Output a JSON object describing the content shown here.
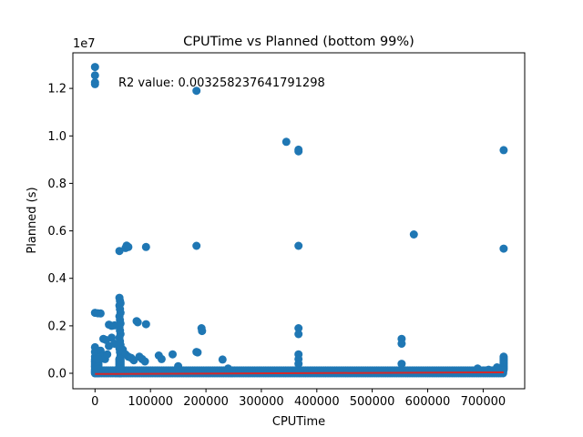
{
  "chart_data": {
    "type": "scatter",
    "title": "CPUTime vs Planned (bottom 99%)",
    "xlabel": "CPUTime",
    "ylabel": "Planned (s)",
    "y_offset_label": "1e7",
    "annotation": "R2 value: 0.003258237641791298",
    "xlim": [
      -40000,
      775000
    ],
    "ylim": [
      -650000,
      13500000
    ],
    "x_ticks": [
      0,
      100000,
      200000,
      300000,
      400000,
      500000,
      600000,
      700000
    ],
    "x_tick_labels": [
      "0",
      "100000",
      "200000",
      "300000",
      "400000",
      "500000",
      "600000",
      "700000"
    ],
    "y_ticks": [
      0,
      2000000,
      4000000,
      6000000,
      8000000,
      10000000,
      12000000
    ],
    "y_tick_labels": [
      "0.0",
      "0.2",
      "0.4",
      "0.6",
      "0.8",
      "1.0",
      "1.2"
    ],
    "grid": false,
    "point_color": "#1f77b4",
    "line_color": "#d62728",
    "regression_line": {
      "x": [
        0,
        737000
      ],
      "y": [
        -30000,
        40000
      ]
    },
    "points": [
      [
        0,
        12900000
      ],
      [
        0,
        12550000
      ],
      [
        0,
        12250000
      ],
      [
        0,
        12180000
      ],
      [
        183000,
        11900000
      ],
      [
        345000,
        9750000
      ],
      [
        367000,
        9420000
      ],
      [
        367000,
        9350000
      ],
      [
        737000,
        9400000
      ],
      [
        44000,
        5150000
      ],
      [
        55000,
        5280000
      ],
      [
        57000,
        5380000
      ],
      [
        60000,
        5320000
      ],
      [
        92000,
        5320000
      ],
      [
        183000,
        5370000
      ],
      [
        367000,
        5370000
      ],
      [
        575000,
        5850000
      ],
      [
        737000,
        5250000
      ],
      [
        0,
        2550000
      ],
      [
        5000,
        2530000
      ],
      [
        10000,
        2520000
      ],
      [
        44000,
        3180000
      ],
      [
        45000,
        3050000
      ],
      [
        46000,
        2950000
      ],
      [
        44000,
        2850000
      ],
      [
        45000,
        2700000
      ],
      [
        46000,
        2550000
      ],
      [
        44000,
        2400000
      ],
      [
        45000,
        2250000
      ],
      [
        46000,
        2100000
      ],
      [
        44000,
        1950000
      ],
      [
        45000,
        1800000
      ],
      [
        46000,
        1650000
      ],
      [
        44000,
        1500000
      ],
      [
        45000,
        1350000
      ],
      [
        46000,
        1200000
      ],
      [
        44000,
        1050000
      ],
      [
        45000,
        900000
      ],
      [
        46000,
        750000
      ],
      [
        44000,
        600000
      ],
      [
        45000,
        450000
      ],
      [
        25000,
        2050000
      ],
      [
        30000,
        2000000
      ],
      [
        35000,
        2020000
      ],
      [
        15000,
        1450000
      ],
      [
        30000,
        1500000
      ],
      [
        20000,
        1400000
      ],
      [
        35000,
        1250000
      ],
      [
        25000,
        1150000
      ],
      [
        75000,
        2200000
      ],
      [
        77000,
        2150000
      ],
      [
        92000,
        2070000
      ],
      [
        0,
        1100000
      ],
      [
        0,
        900000
      ],
      [
        0,
        700000
      ],
      [
        0,
        500000
      ],
      [
        0,
        300000
      ],
      [
        10000,
        950000
      ],
      [
        12000,
        700000
      ],
      [
        18000,
        600000
      ],
      [
        22000,
        800000
      ],
      [
        50000,
        1000000
      ],
      [
        55000,
        800000
      ],
      [
        60000,
        700000
      ],
      [
        65000,
        650000
      ],
      [
        70000,
        550000
      ],
      [
        80000,
        700000
      ],
      [
        85000,
        600000
      ],
      [
        90000,
        500000
      ],
      [
        115000,
        750000
      ],
      [
        120000,
        600000
      ],
      [
        140000,
        800000
      ],
      [
        150000,
        300000
      ],
      [
        183000,
        900000
      ],
      [
        185000,
        880000
      ],
      [
        192000,
        1900000
      ],
      [
        193000,
        1780000
      ],
      [
        230000,
        580000
      ],
      [
        240000,
        200000
      ],
      [
        367000,
        1900000
      ],
      [
        367000,
        1650000
      ],
      [
        367000,
        800000
      ],
      [
        367000,
        600000
      ],
      [
        367000,
        400000
      ],
      [
        553000,
        1450000
      ],
      [
        553000,
        1250000
      ],
      [
        553000,
        400000
      ],
      [
        737000,
        700000
      ],
      [
        737000,
        650000
      ],
      [
        737000,
        600000
      ],
      [
        737000,
        550000
      ],
      [
        737000,
        500000
      ],
      [
        737000,
        450000
      ],
      [
        737000,
        400000
      ],
      [
        737000,
        350000
      ],
      [
        737000,
        300000
      ],
      [
        737000,
        250000
      ],
      [
        737000,
        200000
      ],
      [
        737000,
        150000
      ],
      [
        690000,
        200000
      ],
      [
        710000,
        150000
      ],
      [
        725000,
        250000
      ]
    ]
  }
}
